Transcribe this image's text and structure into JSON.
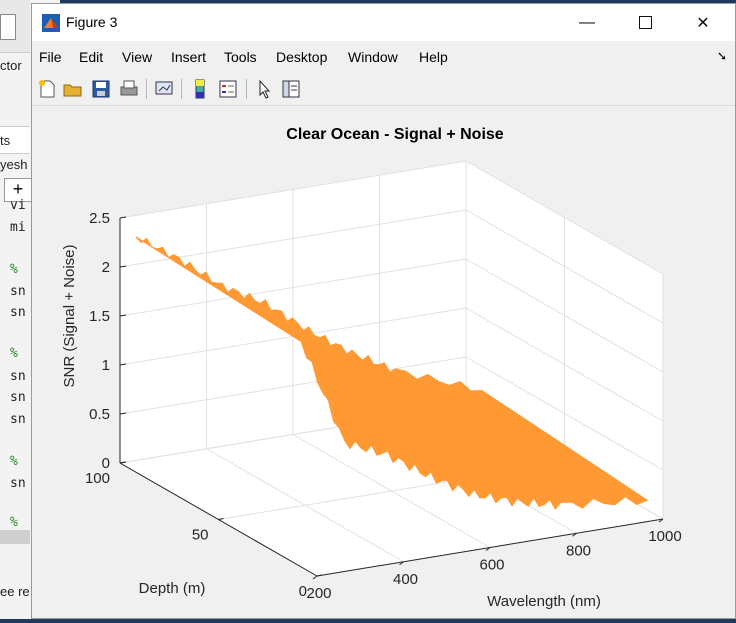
{
  "window": {
    "title": "Figure 3"
  },
  "menu": [
    "File",
    "Edit",
    "View",
    "Insert",
    "Tools",
    "Desktop",
    "Window",
    "Help"
  ],
  "toolbar_icons": [
    "new-figure-icon",
    "open-file-icon",
    "save-icon",
    "print-icon",
    "link-plot-icon",
    "insert-colorbar-icon",
    "insert-legend-icon",
    "edit-plot-icon",
    "property-inspector-icon"
  ],
  "background_app": {
    "left_labels": [
      "ctor",
      "ts",
      "yesh"
    ],
    "code": [
      "vi",
      "mi",
      "%",
      "sn",
      "sn",
      "%",
      "sn",
      "sn",
      "sn",
      "%",
      "sn",
      "%"
    ],
    "bottom_label": "ee re"
  },
  "chart_data": {
    "type": "surface",
    "title": "Clear Ocean - Signal + Noise",
    "xlabel": "Wavelength (nm)",
    "ylabel": "Depth (m)",
    "zlabel": "SNR (Signal + Noise)",
    "xlim": [
      200,
      1000
    ],
    "ylim": [
      0,
      100
    ],
    "zlim": [
      0,
      2.5
    ],
    "xticks": [
      "200",
      "400",
      "600",
      "800",
      "1000"
    ],
    "yticks": [
      "0",
      "50",
      "100"
    ],
    "zticks": [
      "0",
      "0.5",
      "1",
      "1.5",
      "2",
      "2.5"
    ],
    "surface_color": "#ff9933",
    "grid": true,
    "ridge": [
      {
        "wavelength": 200,
        "snr_top": 2.4,
        "snr_bottom": 2.3
      },
      {
        "wavelength": 300,
        "snr_top": 2.1,
        "snr_bottom": 1.2
      },
      {
        "wavelength": 400,
        "snr_top": 1.75,
        "snr_bottom": 1.0
      },
      {
        "wavelength": 500,
        "snr_top": 1.5,
        "snr_bottom": 0.7
      },
      {
        "wavelength": 600,
        "snr_top": 1.15,
        "snr_bottom": 0.45
      },
      {
        "wavelength": 700,
        "snr_top": 0.85,
        "snr_bottom": 0.3
      },
      {
        "wavelength": 800,
        "snr_top": 0.6,
        "snr_bottom": 0.2
      },
      {
        "wavelength": 1000,
        "snr_top": 0.25,
        "snr_bottom": 0.1
      }
    ]
  }
}
